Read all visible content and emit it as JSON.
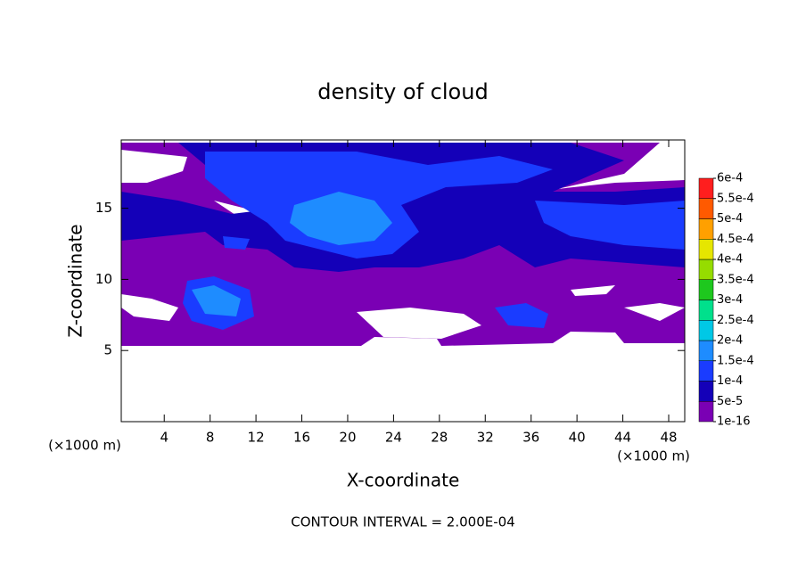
{
  "chart_data": {
    "type": "contour",
    "title": "density of cloud",
    "x_label": "X-coordinate",
    "y_label": "Z-coordinate",
    "x_unit": "(×1000 m)",
    "y_unit": "(×1000 m)",
    "note": "CONTOUR INTERVAL = 2.000E-04",
    "xlim": [
      0.25,
      49.4
    ],
    "xticks": [
      4,
      8,
      12,
      16,
      20,
      24,
      28,
      32,
      36,
      40,
      44,
      48
    ],
    "ylim": [
      0,
      19.8
    ],
    "yticks": [
      5,
      10,
      15
    ],
    "levels": [
      {
        "value": 1e-16,
        "label": "1e-16"
      },
      {
        "value": 5e-05,
        "label": "5e-5"
      },
      {
        "value": 0.0001,
        "label": "1e-4"
      },
      {
        "value": 0.00015,
        "label": "1.5e-4"
      },
      {
        "value": 0.0002,
        "label": "2e-4"
      },
      {
        "value": 0.00025,
        "label": "2.5e-4"
      },
      {
        "value": 0.0003,
        "label": "3e-4"
      },
      {
        "value": 0.00035,
        "label": "3.5e-4"
      },
      {
        "value": 0.0004,
        "label": "4e-4"
      },
      {
        "value": 0.00045,
        "label": "4.5e-4"
      },
      {
        "value": 0.0005,
        "label": "5e-4"
      },
      {
        "value": 0.00055,
        "label": "5.5e-4"
      },
      {
        "value": 0.0006,
        "label": "6e-4"
      }
    ],
    "colors": [
      "#7a00b4",
      "#1400b8",
      "#1a3cff",
      "#1e8cff",
      "#00c8e6",
      "#00e08c",
      "#1ec81e",
      "#96dc00",
      "#e6e600",
      "#ffa000",
      "#ff5a00",
      "#ff1e1e",
      "#ff8c8c"
    ]
  }
}
